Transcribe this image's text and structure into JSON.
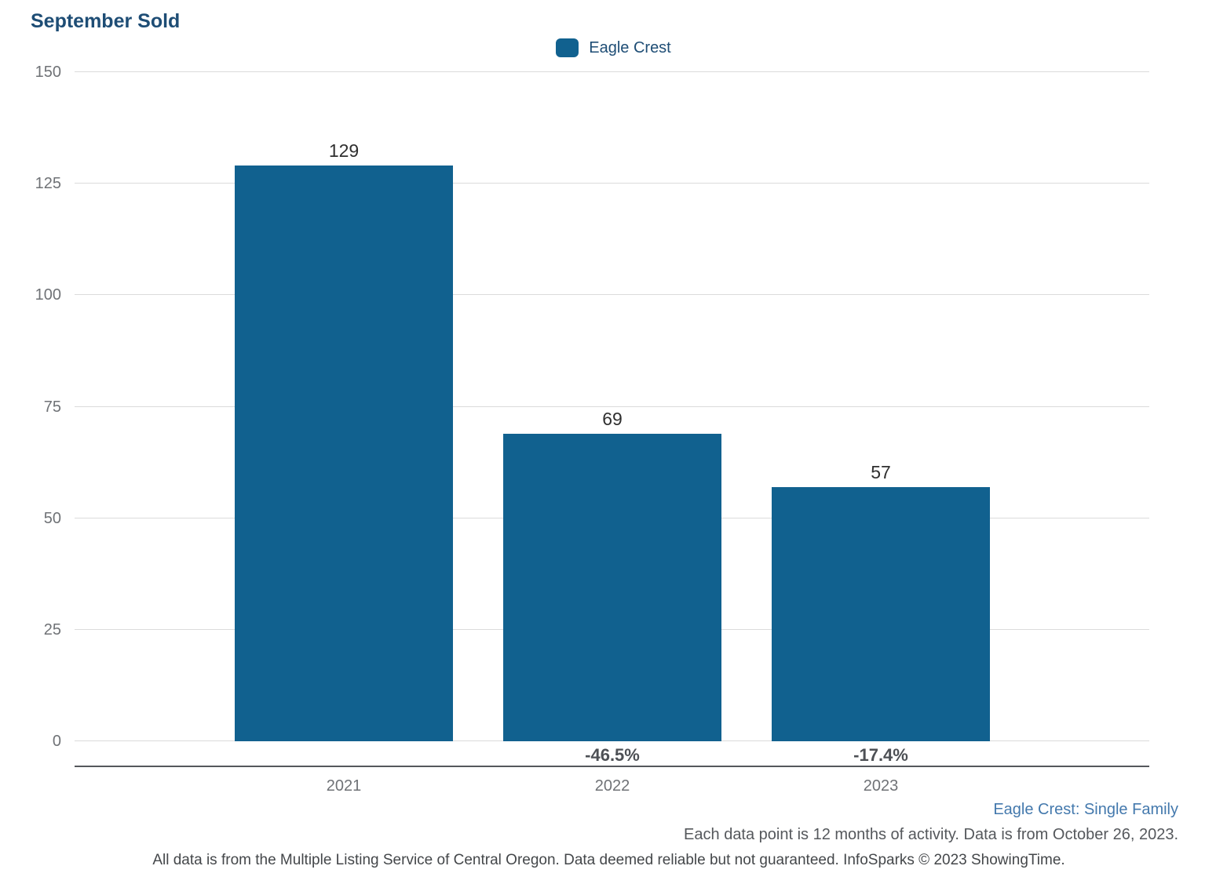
{
  "title": "September Sold",
  "legend": {
    "label": "Eagle Crest"
  },
  "chart_data": {
    "type": "bar",
    "title": "September Sold",
    "categories": [
      "2021",
      "2022",
      "2023"
    ],
    "series": [
      {
        "name": "Eagle Crest",
        "values": [
          129,
          69,
          57
        ]
      }
    ],
    "bar_value_labels": [
      "129",
      "69",
      "57"
    ],
    "pct_change_labels": [
      "",
      "-46.5%",
      "-17.4%"
    ],
    "ylim": [
      0,
      150
    ],
    "yticks": [
      0,
      25,
      50,
      75,
      100,
      125,
      150
    ],
    "grid": true,
    "legend_position": "top-center",
    "xlabel": "",
    "ylabel": ""
  },
  "footer": {
    "series_note": "Eagle Crest: Single Family",
    "data_note": "Each data point is 12 months of activity. Data is from October 26, 2023.",
    "disclaimer": "All data is from the Multiple Listing Service of Central Oregon. Data deemed reliable but not guaranteed. InfoSparks © 2023 ShowingTime."
  },
  "colors": {
    "bar": "#11618f",
    "title_text": "#1e4d75",
    "legend_text": "#1e4d75",
    "gridline": "#dbdbdb",
    "axis_line": "#55585c",
    "tick_text": "#6f7276",
    "value_text": "#2f2f2f",
    "pct_text": "#4d5055",
    "series_note_text": "#4479ad",
    "footnote_text": "#55585c"
  }
}
